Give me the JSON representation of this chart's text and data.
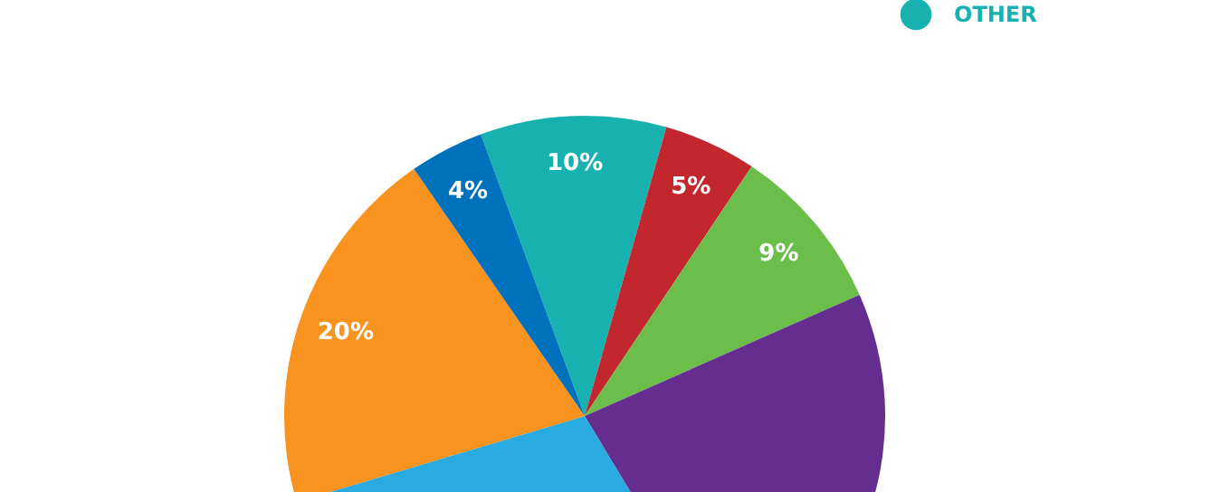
{
  "chart_data": {
    "type": "pie",
    "categories": [
      "OTHER",
      null,
      null,
      null,
      null,
      null,
      null
    ],
    "values": [
      10,
      5,
      9,
      23,
      29,
      20,
      4
    ],
    "colors": [
      "#17b2b0",
      "#c1272d",
      "#6cbe4b",
      "#662d91",
      "#29abe2",
      "#f7931e",
      "#0071bc"
    ],
    "value_labels": [
      "10%",
      "5%",
      "9%",
      null,
      null,
      "20%",
      "4%"
    ],
    "legend": "top right"
  }
}
